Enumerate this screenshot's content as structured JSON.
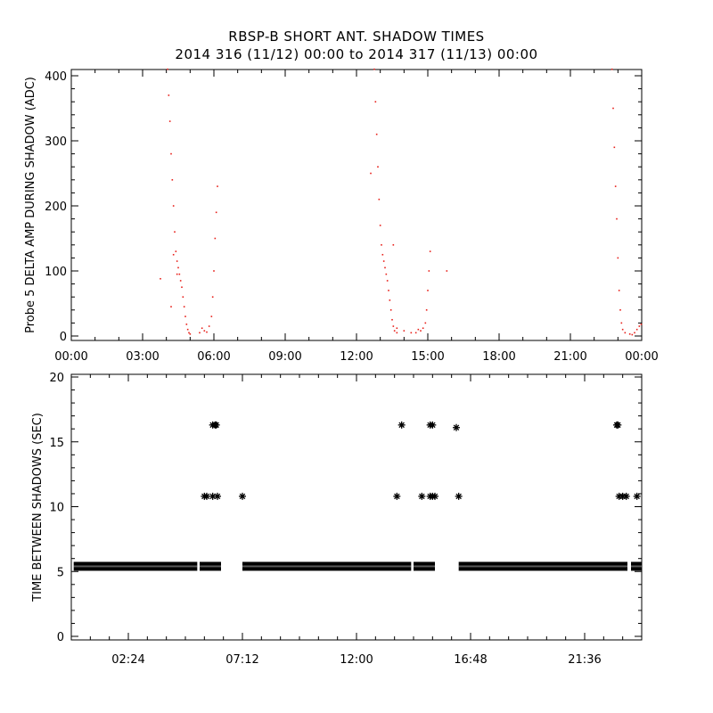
{
  "title_line1": "RBSP-B SHORT ANT. SHADOW TIMES",
  "title_line2": "2014 316 (11/12) 00:00 to 2014 317 (11/13) 00:00",
  "colors": {
    "red_series": "#e8201a",
    "black_series": "#000000",
    "axes": "#000000"
  },
  "chart_data": [
    {
      "type": "scatter",
      "ylabel": "Probe 5 DELTA AMP DURING SHADOW (ADC)",
      "xlabel": "",
      "xlim": [
        0,
        24
      ],
      "ylim": [
        0,
        400
      ],
      "x_ticks": [
        "00:00",
        "03:00",
        "06:00",
        "09:00",
        "12:00",
        "15:00",
        "18:00",
        "21:00",
        "00:00"
      ],
      "y_ticks": [
        "0",
        "100",
        "200",
        "300",
        "400"
      ],
      "series": [
        {
          "color": "#e8201a",
          "points": [
            [
              4.05,
              410
            ],
            [
              4.1,
              370
            ],
            [
              4.15,
              330
            ],
            [
              4.2,
              280
            ],
            [
              4.25,
              240
            ],
            [
              4.3,
              200
            ],
            [
              4.35,
              160
            ],
            [
              4.4,
              130
            ],
            [
              4.45,
              115
            ],
            [
              4.5,
              105
            ],
            [
              4.55,
              95
            ],
            [
              4.6,
              85
            ],
            [
              4.65,
              75
            ],
            [
              4.7,
              60
            ],
            [
              4.75,
              45
            ],
            [
              4.8,
              30
            ],
            [
              4.85,
              18
            ],
            [
              4.9,
              10
            ],
            [
              4.95,
              5
            ],
            [
              5.0,
              3
            ],
            [
              3.75,
              88
            ],
            [
              4.2,
              45
            ],
            [
              4.3,
              125
            ],
            [
              4.45,
              95
            ],
            [
              5.4,
              5
            ],
            [
              5.5,
              12
            ],
            [
              5.6,
              8
            ],
            [
              5.7,
              6
            ],
            [
              5.8,
              15
            ],
            [
              5.9,
              30
            ],
            [
              5.95,
              60
            ],
            [
              6.0,
              100
            ],
            [
              6.05,
              150
            ],
            [
              6.1,
              190
            ],
            [
              6.15,
              230
            ],
            [
              12.75,
              410
            ],
            [
              12.8,
              360
            ],
            [
              12.85,
              310
            ],
            [
              12.9,
              260
            ],
            [
              12.95,
              210
            ],
            [
              13.0,
              170
            ],
            [
              13.05,
              140
            ],
            [
              13.1,
              125
            ],
            [
              13.15,
              115
            ],
            [
              13.2,
              105
            ],
            [
              13.25,
              95
            ],
            [
              13.3,
              85
            ],
            [
              13.35,
              70
            ],
            [
              13.4,
              55
            ],
            [
              13.45,
              40
            ],
            [
              13.5,
              25
            ],
            [
              13.55,
              15
            ],
            [
              13.6,
              8
            ],
            [
              13.7,
              5
            ],
            [
              12.6,
              250
            ],
            [
              13.55,
              140
            ],
            [
              13.7,
              12
            ],
            [
              14.0,
              8
            ],
            [
              14.3,
              5
            ],
            [
              14.5,
              5
            ],
            [
              14.6,
              10
            ],
            [
              14.7,
              8
            ],
            [
              14.8,
              12
            ],
            [
              14.9,
              20
            ],
            [
              14.95,
              40
            ],
            [
              15.0,
              70
            ],
            [
              15.05,
              100
            ],
            [
              15.1,
              130
            ],
            [
              15.8,
              100
            ],
            [
              22.75,
              410
            ],
            [
              22.8,
              350
            ],
            [
              22.85,
              290
            ],
            [
              22.9,
              230
            ],
            [
              22.95,
              180
            ],
            [
              23.0,
              120
            ],
            [
              23.05,
              70
            ],
            [
              23.1,
              40
            ],
            [
              23.15,
              20
            ],
            [
              23.2,
              10
            ],
            [
              23.3,
              5
            ],
            [
              23.5,
              3
            ],
            [
              23.6,
              2
            ],
            [
              23.7,
              5
            ],
            [
              23.8,
              10
            ],
            [
              23.9,
              15
            ],
            [
              23.98,
              18
            ]
          ]
        }
      ]
    },
    {
      "type": "scatter",
      "ylabel": "TIME BETWEEN SHADOWS (SEC)",
      "xlabel": "",
      "xlim": [
        0,
        24
      ],
      "ylim": [
        0,
        20
      ],
      "x_ticks": [
        "02:24",
        "07:12",
        "12:00",
        "16:48",
        "21:36"
      ],
      "y_ticks": [
        "0",
        "5",
        "10",
        "15",
        "20"
      ],
      "band": {
        "y": 5.4,
        "segments": [
          [
            0.1,
            5.3
          ],
          [
            5.4,
            6.3
          ],
          [
            7.2,
            14.3
          ],
          [
            14.4,
            15.3
          ],
          [
            16.3,
            23.4
          ],
          [
            23.55,
            24.0
          ]
        ]
      },
      "series": [
        {
          "color": "#000000",
          "points": [
            [
              5.6,
              10.8
            ],
            [
              5.7,
              10.8
            ],
            [
              5.95,
              10.8
            ],
            [
              6.15,
              10.8
            ],
            [
              7.2,
              10.8
            ],
            [
              13.7,
              10.8
            ],
            [
              14.75,
              10.8
            ],
            [
              15.1,
              10.8
            ],
            [
              15.2,
              10.8
            ],
            [
              15.3,
              10.8
            ],
            [
              16.3,
              10.8
            ],
            [
              23.05,
              10.8
            ],
            [
              23.2,
              10.8
            ],
            [
              23.35,
              10.8
            ],
            [
              23.8,
              10.8
            ],
            [
              5.95,
              16.3
            ],
            [
              6.05,
              16.3
            ],
            [
              6.1,
              16.3
            ],
            [
              13.9,
              16.3
            ],
            [
              15.1,
              16.3
            ],
            [
              15.2,
              16.3
            ],
            [
              16.2,
              16.1
            ],
            [
              22.95,
              16.3
            ],
            [
              23.0,
              16.3
            ]
          ]
        }
      ]
    }
  ]
}
